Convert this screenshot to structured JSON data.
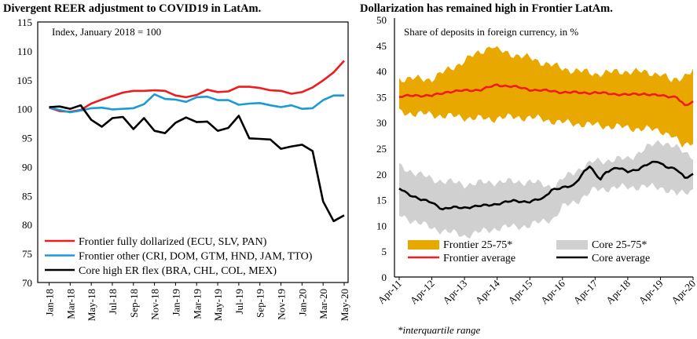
{
  "chart_data": [
    {
      "type": "line",
      "title": "Divergent REER adjustment to COVID19 in LatAm.",
      "subtitle": "Index, January 2018 = 100",
      "ylim": [
        70,
        115
      ],
      "yticks": [
        70,
        75,
        80,
        85,
        90,
        95,
        100,
        105,
        110,
        115
      ],
      "xticks": [
        "Jan-18",
        "Mar-18",
        "May-18",
        "Jul-18",
        "Sep-18",
        "Nov-18",
        "Jan-19",
        "Mar-19",
        "May-19",
        "Jul-19",
        "Sep-19",
        "Nov-19",
        "Jan-20",
        "Mar-20",
        "May-20"
      ],
      "n_points": 29,
      "legend_position": "bottom-left",
      "series": [
        {
          "name": "Frontier fully dollarized (ECU, SLV, PAN)",
          "color": "#ee1c1c",
          "values": [
            100.2,
            99.6,
            99.5,
            99.8,
            100.9,
            101.6,
            102.2,
            102.8,
            103.1,
            103.1,
            103.2,
            103.1,
            102.3,
            102.0,
            102.4,
            103.3,
            102.9,
            103.0,
            103.8,
            103.8,
            103.6,
            103.2,
            103.1,
            102.6,
            102.9,
            103.7,
            104.9,
            106.3,
            108.3
          ]
        },
        {
          "name": "Frontier other (CRI, DOM, GTM, HND, JAM, TTO)",
          "color": "#1a9bd7",
          "values": [
            100.2,
            99.8,
            99.4,
            99.7,
            100.1,
            100.2,
            99.9,
            100.0,
            100.1,
            100.8,
            102.5,
            101.7,
            101.6,
            101.2,
            102.0,
            102.1,
            101.5,
            101.5,
            100.7,
            100.9,
            101.0,
            100.6,
            100.3,
            100.6,
            100.0,
            100.1,
            101.5,
            102.3,
            102.3
          ]
        },
        {
          "name": "Core high ER flex (BRA, CHL, COL, MEX)",
          "color": "#000000",
          "values": [
            100.3,
            100.4,
            100.0,
            100.6,
            98.1,
            96.9,
            98.4,
            98.6,
            96.5,
            98.4,
            96.2,
            95.8,
            97.6,
            98.5,
            97.7,
            97.8,
            96.2,
            96.7,
            98.8,
            94.9,
            94.8,
            94.7,
            93.1,
            93.5,
            93.8,
            92.7,
            84.0,
            80.6,
            81.6
          ]
        }
      ]
    },
    {
      "type": "area",
      "title": "Dollarization has remained high in Frontier LatAm.",
      "subtitle": "Share of deposits in foreign currency, in %",
      "ylim": [
        0,
        50
      ],
      "yticks": [
        0,
        5,
        10,
        15,
        20,
        25,
        30,
        35,
        40,
        45,
        50
      ],
      "xticks": [
        "Apr-11",
        "Apr-12",
        "Apr-13",
        "Apr-14",
        "Apr-15",
        "Apr-16",
        "Apr-17",
        "Apr-18",
        "Apr-19",
        "Apr-20"
      ],
      "n_points": 109,
      "legend_position": "bottom",
      "note": "*interquartile range",
      "bands": [
        {
          "name": "Frontier 25-75*",
          "color": "#e8a800",
          "anchors_x": [
            0,
            12,
            24,
            34,
            36,
            48,
            60,
            72,
            84,
            96,
            100,
            104,
            108
          ],
          "low": [
            32.0,
            31.5,
            31.0,
            30.6,
            31.0,
            31.0,
            30.0,
            29.5,
            29.0,
            28.5,
            27.5,
            25.5,
            26.5
          ],
          "high": [
            38.5,
            38.5,
            42.0,
            45.0,
            44.0,
            42.5,
            40.5,
            39.5,
            40.0,
            39.5,
            38.0,
            39.0,
            40.0
          ]
        },
        {
          "name": "Core 25-75*",
          "color": "#d0d0d0",
          "anchors_x": [
            0,
            12,
            24,
            36,
            48,
            57,
            60,
            66,
            72,
            84,
            96,
            102,
            108
          ],
          "low": [
            12.0,
            9.5,
            8.0,
            9.5,
            10.0,
            11.5,
            13.5,
            15.0,
            17.0,
            17.5,
            17.5,
            16.0,
            17.0
          ],
          "high": [
            21.5,
            19.0,
            18.0,
            18.5,
            18.5,
            17.5,
            19.0,
            21.0,
            22.5,
            23.0,
            26.5,
            25.0,
            23.5
          ]
        }
      ],
      "series": [
        {
          "name": "Frontier average",
          "color": "#ee1c1c",
          "anchors_x": [
            0,
            6,
            12,
            18,
            24,
            30,
            36,
            42,
            48,
            54,
            60,
            66,
            72,
            78,
            84,
            90,
            96,
            102,
            105,
            108
          ],
          "values": [
            35.0,
            35.3,
            35.2,
            36.0,
            36.2,
            36.4,
            37.3,
            37.0,
            36.4,
            36.2,
            35.9,
            35.8,
            35.8,
            35.6,
            35.4,
            35.6,
            35.2,
            35.0,
            33.2,
            34.0
          ]
        },
        {
          "name": "Core average",
          "color": "#000000",
          "anchors_x": [
            0,
            4,
            8,
            12,
            16,
            20,
            24,
            30,
            36,
            42,
            48,
            53,
            56,
            59,
            62,
            64,
            68,
            70,
            72,
            74,
            76,
            80,
            84,
            88,
            92,
            95,
            98,
            102,
            105,
            108
          ],
          "values": [
            17.2,
            16.0,
            15.0,
            14.5,
            13.2,
            13.5,
            13.5,
            13.8,
            14.2,
            14.8,
            14.6,
            15.3,
            17.0,
            17.2,
            17.5,
            17.8,
            20.5,
            21.5,
            20.0,
            19.0,
            20.5,
            21.2,
            20.5,
            21.0,
            22.0,
            22.5,
            21.5,
            20.8,
            19.3,
            20.0
          ]
        }
      ]
    }
  ]
}
